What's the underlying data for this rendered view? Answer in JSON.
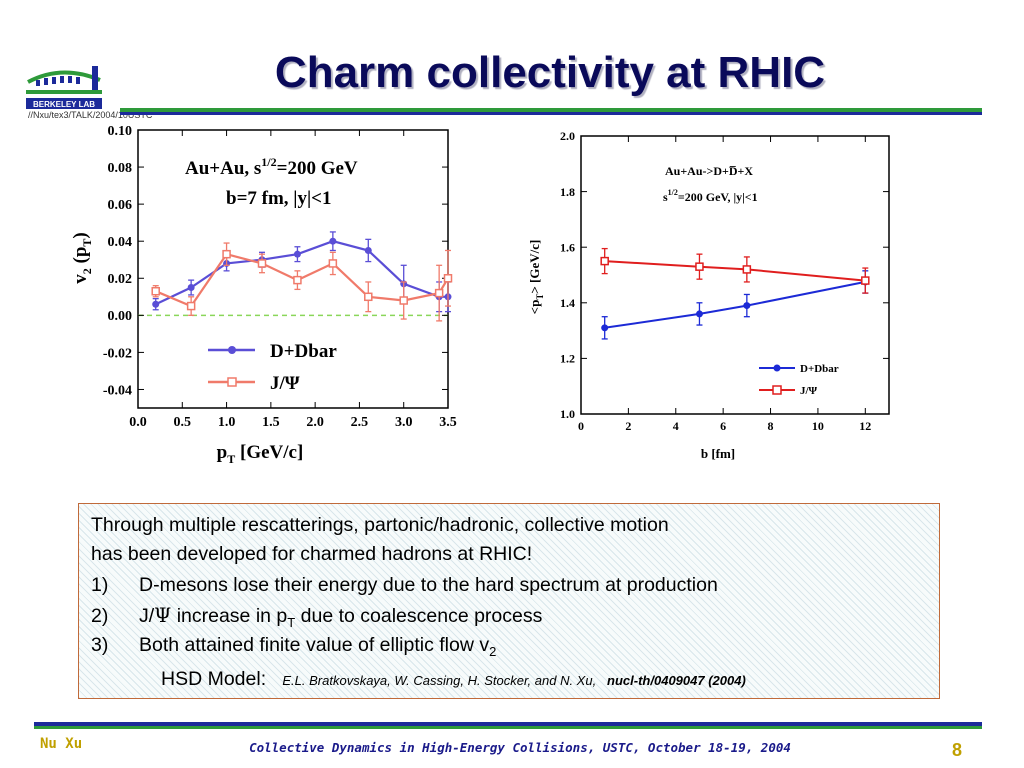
{
  "slide": {
    "title": "Charm collectivity at RHIC",
    "path_note": "//Nxu/tex3/TALK/2004/10USTC",
    "logo_text": "BERKELEY LAB",
    "author": "Nu Xu",
    "footer": "Collective Dynamics in High-Energy Collisions, USTC, October 18-19, 2004",
    "page_number": "8"
  },
  "textbox": {
    "line1": "Through multiple rescatterings, partonic/hadronic, collective motion",
    "line2": "has been developed for charmed hadrons at RHIC!",
    "items": [
      {
        "num": "1)",
        "text": "D-mesons lose their energy due to the hard spectrum at production"
      },
      {
        "num": "2)",
        "text_a": "J/",
        "psi": "Ψ",
        "text_b": " increase in p",
        "sub": "T",
        "text_c": " due to coalescence process"
      },
      {
        "num": "3)",
        "text": "Both attained finite value of elliptic flow v",
        "sub": "2"
      }
    ],
    "model_label": "HSD Model:",
    "citation": "E.L. Bratkovskaya, W. Cassing, H. Stocker, and N. Xu,",
    "citation_ref": "nucl-th/0409047 (2004)"
  },
  "colors": {
    "title": "#0a0a5a",
    "rule_blue": "#1c2a9a",
    "rule_green": "#2e9a3a",
    "left_series_1": "#5a4ed6",
    "left_series_2": "#f07a6a",
    "right_series_1": "#1c2ad6",
    "right_series_2": "#e01e1e",
    "zero_line": "#8ad65a"
  },
  "chart_data": [
    {
      "type": "line",
      "annotation_line1": "Au+Au, s",
      "annotation_sup": "1/2",
      "annotation_line1b": "=200 GeV",
      "annotation_line2": "b=7 fm, |y|<1",
      "xlabel": "p",
      "xlabel_sub": "T",
      "xlabel_unit": " [GeV/c]",
      "ylabel": "v",
      "ylabel_sub": "2",
      "ylabel_paren": " (p",
      "ylabel_paren_sub": "T",
      "ylabel_close": ")",
      "xlim": [
        0.0,
        3.5
      ],
      "ylim": [
        -0.05,
        0.1
      ],
      "xticks": [
        "0.0",
        "0.5",
        "1.0",
        "1.5",
        "2.0",
        "2.5",
        "3.0",
        "3.5"
      ],
      "yticks": [
        "0.10",
        "0.08",
        "0.06",
        "0.04",
        "0.02",
        "0.00",
        "-0.02",
        "-0.04"
      ],
      "zero_line": true,
      "legend_position": "bottom-right",
      "series": [
        {
          "name": "D+Dbar",
          "marker": "filled-circle",
          "x": [
            0.2,
            0.6,
            1.0,
            1.4,
            1.8,
            2.2,
            2.6,
            3.0,
            3.4,
            3.5
          ],
          "y": [
            0.006,
            0.015,
            0.028,
            0.03,
            0.033,
            0.04,
            0.035,
            0.017,
            0.01,
            0.01
          ],
          "err": [
            0.003,
            0.004,
            0.004,
            0.004,
            0.004,
            0.005,
            0.006,
            0.01,
            0.008,
            0.008
          ]
        },
        {
          "name": "J/Ψ",
          "marker": "open-square",
          "x": [
            0.2,
            0.6,
            1.0,
            1.4,
            1.8,
            2.2,
            2.6,
            3.0,
            3.4,
            3.5
          ],
          "y": [
            0.013,
            0.005,
            0.033,
            0.028,
            0.019,
            0.028,
            0.01,
            0.008,
            0.012,
            0.02
          ],
          "err": [
            0.003,
            0.005,
            0.006,
            0.005,
            0.005,
            0.006,
            0.008,
            0.01,
            0.015,
            0.015
          ]
        }
      ]
    },
    {
      "type": "line",
      "annotation_line1": "Au+Au->D+D̅+X",
      "annotation_line2_a": "s",
      "annotation_line2_sup": "1/2",
      "annotation_line2_b": "=200 GeV, |y|<1",
      "xlabel": "b [fm]",
      "ylabel": "<p",
      "ylabel_sub": "T",
      "ylabel_rest": ">  [GeV/c]",
      "xlim": [
        0,
        13
      ],
      "ylim": [
        1.0,
        2.0
      ],
      "xticks": [
        "0",
        "2",
        "4",
        "6",
        "8",
        "10",
        "12"
      ],
      "yticks": [
        "2.0",
        "1.8",
        "1.6",
        "1.4",
        "1.2",
        "1.0"
      ],
      "legend_position": "bottom-right",
      "series": [
        {
          "name": "D+Dbar",
          "marker": "filled-circle",
          "x": [
            1,
            5,
            7,
            12
          ],
          "y": [
            1.31,
            1.36,
            1.39,
            1.475
          ],
          "err": [
            0.04,
            0.04,
            0.04,
            0.04
          ]
        },
        {
          "name": "J/Ψ",
          "marker": "open-square",
          "x": [
            1,
            5,
            7,
            12
          ],
          "y": [
            1.55,
            1.53,
            1.52,
            1.48
          ],
          "err": [
            0.045,
            0.045,
            0.045,
            0.045
          ]
        }
      ]
    }
  ]
}
